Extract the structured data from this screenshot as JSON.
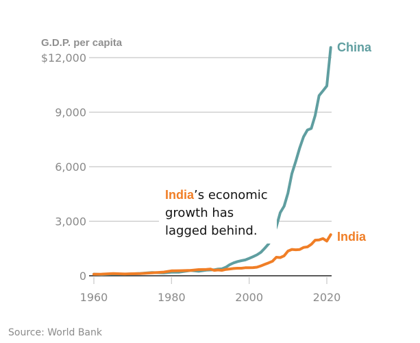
{
  "chart_data": {
    "type": "line",
    "title": "",
    "ylabel": "G.D.P. per capita",
    "xlabel": "",
    "xlim": [
      1960,
      2021
    ],
    "ylim": [
      0,
      12000
    ],
    "x_ticks": [
      1960,
      1980,
      2000,
      2020
    ],
    "x_tick_labels": [
      "1960",
      "1980",
      "2000",
      "2020"
    ],
    "y_ticks": [
      0,
      3000,
      6000,
      9000,
      12000
    ],
    "y_tick_labels": [
      "0",
      "3,000",
      "6,000",
      "9,000",
      "$12,000"
    ],
    "grid": true,
    "series": [
      {
        "name": "China",
        "color": "#5f9ea0",
        "x": [
          1960,
          1962,
          1965,
          1968,
          1970,
          1972,
          1975,
          1978,
          1980,
          1982,
          1985,
          1987,
          1989,
          1990,
          1991,
          1992,
          1993,
          1994,
          1995,
          1996,
          1997,
          1998,
          1999,
          2000,
          2001,
          2002,
          2003,
          2004,
          2005,
          2006,
          2007,
          2008,
          2009,
          2010,
          2011,
          2012,
          2013,
          2014,
          2015,
          2016,
          2017,
          2018,
          2019,
          2020,
          2021
        ],
        "values": [
          90,
          70,
          100,
          90,
          110,
          130,
          180,
          160,
          195,
          200,
          295,
          250,
          310,
          320,
          330,
          370,
          380,
          470,
          610,
          710,
          780,
          830,
          870,
          960,
          1050,
          1150,
          1290,
          1510,
          1750,
          2100,
          2690,
          3470,
          3830,
          4550,
          5620,
          6300,
          7020,
          7640,
          8020,
          8100,
          8820,
          9910,
          10170,
          10440,
          12560
        ]
      },
      {
        "name": "India",
        "color": "#f07e26",
        "x": [
          1960,
          1962,
          1965,
          1968,
          1970,
          1972,
          1975,
          1978,
          1980,
          1982,
          1985,
          1987,
          1989,
          1990,
          1991,
          1992,
          1993,
          1994,
          1995,
          1996,
          1997,
          1998,
          1999,
          2000,
          2001,
          2002,
          2003,
          2004,
          2005,
          2006,
          2007,
          2008,
          2009,
          2010,
          2011,
          2012,
          2013,
          2014,
          2015,
          2016,
          2017,
          2018,
          2019,
          2020,
          2021
        ],
        "values": [
          82,
          92,
          120,
          100,
          112,
          125,
          158,
          205,
          270,
          280,
          300,
          340,
          350,
          370,
          300,
          320,
          300,
          350,
          375,
          400,
          415,
          415,
          440,
          445,
          450,
          470,
          545,
          625,
          710,
          800,
          1020,
          1000,
          1100,
          1360,
          1450,
          1430,
          1440,
          1560,
          1590,
          1730,
          1960,
          1970,
          2050,
          1910,
          2260
        ]
      }
    ],
    "legend": "direct labels at line ends (right)",
    "annotation": {
      "highlight": "India",
      "rest_line1": "’s economic",
      "line2": "growth has",
      "line3": "lagged behind."
    },
    "source": "Source: World Bank"
  }
}
